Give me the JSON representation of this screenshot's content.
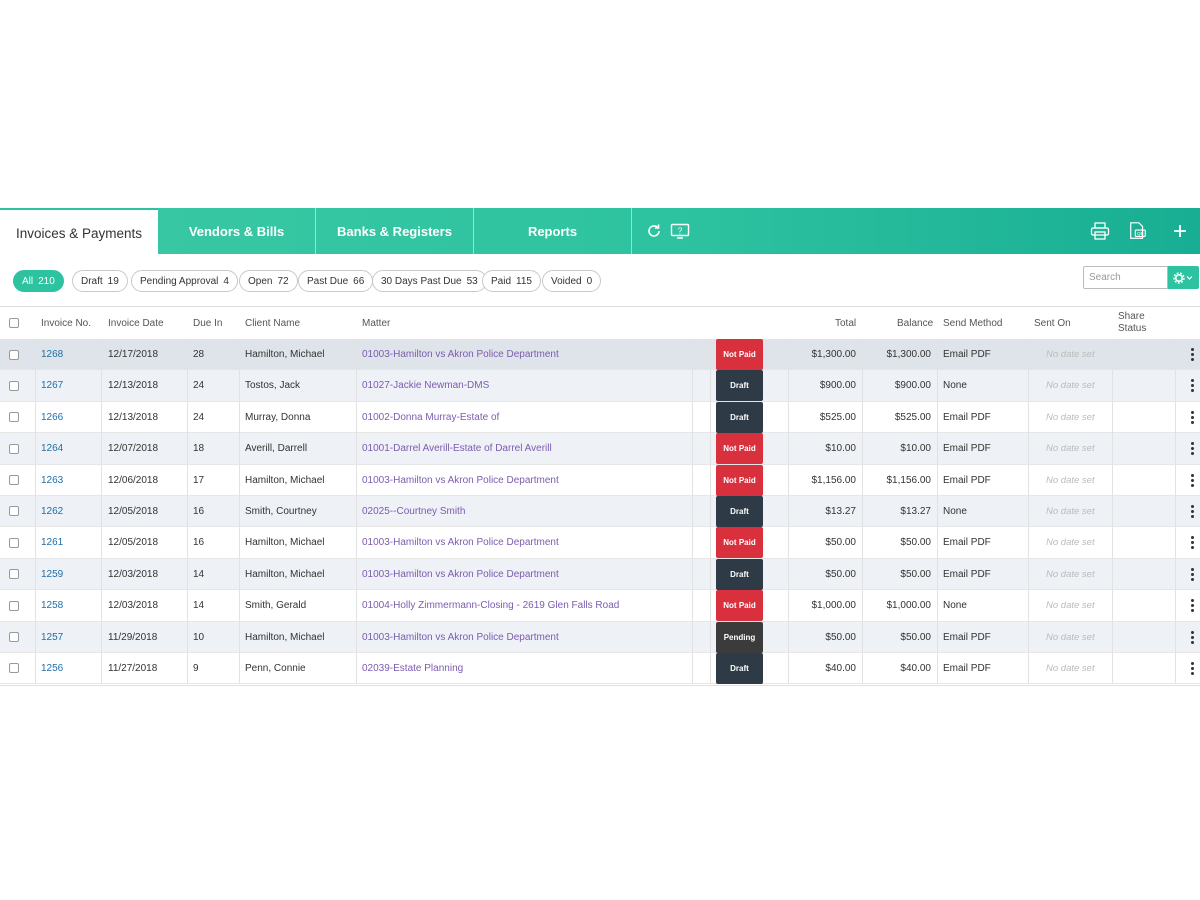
{
  "nav": {
    "tabs": [
      {
        "label": "Invoices & Payments",
        "active": true
      },
      {
        "label": "Vendors & Bills"
      },
      {
        "label": "Banks & Registers"
      },
      {
        "label": "Reports"
      }
    ],
    "icons": [
      "refresh-icon",
      "help-video-icon",
      "print-icon",
      "export-icon",
      "add-icon"
    ]
  },
  "filters": [
    {
      "label": "All",
      "count": "210",
      "active": true
    },
    {
      "label": "Draft",
      "count": "19"
    },
    {
      "label": "Pending Approval",
      "count": "4"
    },
    {
      "label": "Open",
      "count": "72"
    },
    {
      "label": "Past Due",
      "count": "66"
    },
    {
      "label": "30 Days Past Due",
      "count": "53"
    },
    {
      "label": "Paid",
      "count": "115"
    },
    {
      "label": "Voided",
      "count": "0"
    }
  ],
  "search": {
    "placeholder": "Search"
  },
  "columns": {
    "invoice_no": "Invoice No.",
    "invoice_date": "Invoice Date",
    "due_in": "Due In",
    "client_name": "Client Name",
    "matter": "Matter",
    "total": "Total",
    "balance": "Balance",
    "send_method": "Send Method",
    "sent_on": "Sent On",
    "share_status_1": "Share",
    "share_status_2": "Status"
  },
  "status_colors": {
    "Not Paid": "#d9303e",
    "Draft": "#2e3a45",
    "Pending": "#3b3b3b"
  },
  "rows": [
    {
      "no": "1268",
      "date": "12/17/2018",
      "due": "28",
      "client": "Hamilton, Michael",
      "matter": "01003-Hamilton vs Akron Police Department",
      "status": "Not Paid",
      "total": "$1,300.00",
      "balance": "$1,300.00",
      "method": "Email PDF",
      "sent": "No date set"
    },
    {
      "no": "1267",
      "date": "12/13/2018",
      "due": "24",
      "client": "Tostos, Jack",
      "matter": "01027-Jackie Newman-DMS",
      "status": "Draft",
      "total": "$900.00",
      "balance": "$900.00",
      "method": "None",
      "sent": "No date set"
    },
    {
      "no": "1266",
      "date": "12/13/2018",
      "due": "24",
      "client": "Murray, Donna",
      "matter": "01002-Donna Murray-Estate of",
      "status": "Draft",
      "total": "$525.00",
      "balance": "$525.00",
      "method": "Email PDF",
      "sent": "No date set"
    },
    {
      "no": "1264",
      "date": "12/07/2018",
      "due": "18",
      "client": "Averill, Darrell",
      "matter": "01001-Darrel Averill-Estate of Darrel Averill",
      "status": "Not Paid",
      "total": "$10.00",
      "balance": "$10.00",
      "method": "Email PDF",
      "sent": "No date set"
    },
    {
      "no": "1263",
      "date": "12/06/2018",
      "due": "17",
      "client": "Hamilton, Michael",
      "matter": "01003-Hamilton vs Akron Police Department",
      "status": "Not Paid",
      "total": "$1,156.00",
      "balance": "$1,156.00",
      "method": "Email PDF",
      "sent": "No date set"
    },
    {
      "no": "1262",
      "date": "12/05/2018",
      "due": "16",
      "client": "Smith, Courtney",
      "matter": "02025--Courtney Smith",
      "status": "Draft",
      "total": "$13.27",
      "balance": "$13.27",
      "method": "None",
      "sent": "No date set"
    },
    {
      "no": "1261",
      "date": "12/05/2018",
      "due": "16",
      "client": "Hamilton, Michael",
      "matter": "01003-Hamilton vs Akron Police Department",
      "status": "Not Paid",
      "total": "$50.00",
      "balance": "$50.00",
      "method": "Email PDF",
      "sent": "No date set"
    },
    {
      "no": "1259",
      "date": "12/03/2018",
      "due": "14",
      "client": "Hamilton, Michael",
      "matter": "01003-Hamilton vs Akron Police Department",
      "status": "Draft",
      "total": "$50.00",
      "balance": "$50.00",
      "method": "Email PDF",
      "sent": "No date set"
    },
    {
      "no": "1258",
      "date": "12/03/2018",
      "due": "14",
      "client": "Smith, Gerald",
      "matter": "01004-Holly Zimmermann-Closing - 2619 Glen Falls Road",
      "status": "Not Paid",
      "total": "$1,000.00",
      "balance": "$1,000.00",
      "method": "None",
      "sent": "No date set"
    },
    {
      "no": "1257",
      "date": "11/29/2018",
      "due": "10",
      "client": "Hamilton, Michael",
      "matter": "01003-Hamilton vs Akron Police Department",
      "status": "Pending",
      "total": "$50.00",
      "balance": "$50.00",
      "method": "Email PDF",
      "sent": "No date set"
    },
    {
      "no": "1256",
      "date": "11/27/2018",
      "due": "9",
      "client": "Penn, Connie",
      "matter": "02039-Estate Planning",
      "status": "Draft",
      "total": "$40.00",
      "balance": "$40.00",
      "method": "Email PDF",
      "sent": "No date set"
    }
  ]
}
